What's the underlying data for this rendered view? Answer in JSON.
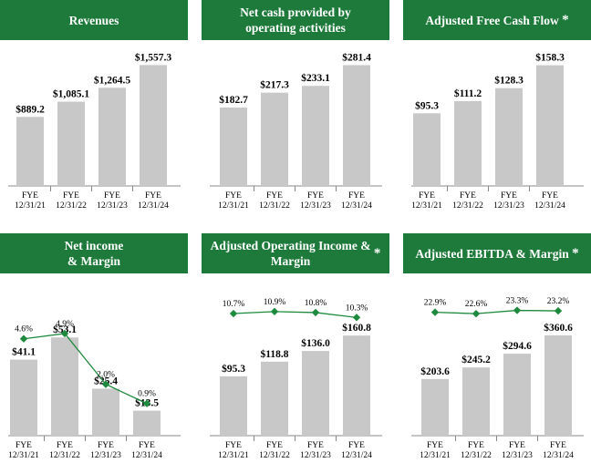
{
  "colors": {
    "header_bg": "#1e7a3b",
    "header_text": "#ffffff",
    "bar": "#c8c8c8",
    "line": "#1e8a3e",
    "axis": "#888888"
  },
  "panels": [
    {
      "title": "Revenues",
      "star": ""
    },
    {
      "title": "Net cash provided by\noperating activities",
      "star": ""
    },
    {
      "title": "Adjusted Free Cash Flow",
      "star": "*"
    },
    {
      "title": "Net income\n& Margin",
      "star": ""
    },
    {
      "title": "Adjusted Operating Income &\nMargin",
      "star": "*"
    },
    {
      "title": "Adjusted EBITDA & Margin",
      "star": "*"
    }
  ],
  "chart_data": [
    {
      "type": "bar",
      "title": "Revenues",
      "categories": [
        [
          "FYE",
          "12/31/21"
        ],
        [
          "FYE",
          "12/31/22"
        ],
        [
          "FYE",
          "12/31/23"
        ],
        [
          "FYE",
          "12/31/24"
        ]
      ],
      "values": [
        889.2,
        1085.1,
        1264.5,
        1557.3
      ],
      "labels": [
        "$889.2",
        "$1,085.1",
        "$1,264.5",
        "$1,557.3"
      ],
      "ylim": [
        0,
        1620
      ]
    },
    {
      "type": "bar",
      "title": "Net cash provided by operating activities",
      "categories": [
        [
          "FYE",
          "12/31/21"
        ],
        [
          "FYE",
          "12/31/22"
        ],
        [
          "FYE",
          "12/31/23"
        ],
        [
          "FYE",
          "12/31/24"
        ]
      ],
      "values": [
        182.7,
        217.3,
        233.1,
        281.4
      ],
      "labels": [
        "$182.7",
        "$217.3",
        "$233.1",
        "$281.4"
      ],
      "ylim": [
        0,
        293
      ]
    },
    {
      "type": "bar",
      "title": "Adjusted Free Cash Flow",
      "categories": [
        [
          "FYE",
          "12/31/21"
        ],
        [
          "FYE",
          "12/31/22"
        ],
        [
          "FYE",
          "12/31/23"
        ],
        [
          "FYE",
          "12/31/24"
        ]
      ],
      "values": [
        95.3,
        111.2,
        128.3,
        158.3
      ],
      "labels": [
        "$95.3",
        "$111.2",
        "$128.3",
        "$158.3"
      ],
      "ylim": [
        0,
        165
      ]
    },
    {
      "type": "bar+line",
      "title": "Net income & Margin",
      "categories": [
        [
          "FYE",
          "12/31/21"
        ],
        [
          "FYE",
          "12/31/22"
        ],
        [
          "FYE",
          "12/31/23"
        ],
        [
          "FYE",
          "12/31/24"
        ]
      ],
      "values": [
        41.1,
        53.1,
        25.4,
        13.5
      ],
      "labels": [
        "$41.1",
        "$53.1",
        "$25.4",
        "$13.5"
      ],
      "ylim": [
        0,
        68
      ],
      "margin_values": [
        4.6,
        4.9,
        2.0,
        0.9
      ],
      "margin_labels": [
        "4.6%",
        "4.9%",
        "2.0%",
        "0.9%"
      ],
      "margin_ylim": [
        0,
        7.4
      ]
    },
    {
      "type": "bar+line",
      "title": "Adjusted Operating Income & Margin",
      "categories": [
        [
          "FYE",
          "12/31/21"
        ],
        [
          "FYE",
          "12/31/22"
        ],
        [
          "FYE",
          "12/31/23"
        ],
        [
          "FYE",
          "12/31/24"
        ]
      ],
      "values": [
        95.3,
        118.8,
        136.0,
        160.8
      ],
      "labels": [
        "$95.3",
        "$118.8",
        "$136.0",
        "$160.8"
      ],
      "ylim": [
        0,
        202
      ],
      "margin_values": [
        10.7,
        10.9,
        10.8,
        10.3
      ],
      "margin_labels": [
        "10.7%",
        "10.9%",
        "10.8%",
        "10.3%"
      ],
      "margin_ylim": [
        0,
        13.1
      ]
    },
    {
      "type": "bar+line",
      "title": "Adjusted EBITDA & Margin",
      "categories": [
        [
          "FYE",
          "12/31/21"
        ],
        [
          "FYE",
          "12/31/22"
        ],
        [
          "FYE",
          "12/31/23"
        ],
        [
          "FYE",
          "12/31/24"
        ]
      ],
      "values": [
        203.6,
        245.2,
        294.6,
        360.6
      ],
      "labels": [
        "$203.6",
        "$245.2",
        "$294.6",
        "$360.6"
      ],
      "ylim": [
        0,
        452
      ],
      "margin_values": [
        22.9,
        22.6,
        23.3,
        23.2
      ],
      "margin_labels": [
        "22.9%",
        "22.6%",
        "23.3%",
        "23.2%"
      ],
      "margin_ylim": [
        0,
        27.7
      ]
    }
  ]
}
